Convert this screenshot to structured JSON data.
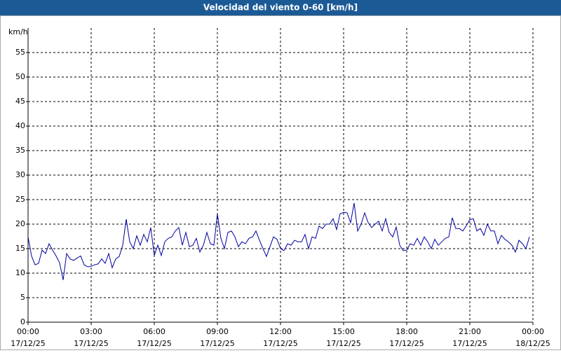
{
  "chart_data": {
    "type": "line",
    "title": "Velocidad del viento 0-60 [km/h]",
    "y_unit": "km/h",
    "xlim": [
      0,
      1440
    ],
    "ylim": [
      0,
      60
    ],
    "yticks": [
      0,
      5,
      10,
      15,
      20,
      25,
      30,
      35,
      40,
      45,
      50,
      55
    ],
    "xticks": [
      {
        "value": 0,
        "label": "00:00",
        "date": "17/12/25"
      },
      {
        "value": 180,
        "label": "03:00",
        "date": "17/12/25"
      },
      {
        "value": 360,
        "label": "06:00",
        "date": "17/12/25"
      },
      {
        "value": 540,
        "label": "09:00",
        "date": "17/12/25"
      },
      {
        "value": 720,
        "label": "12:00",
        "date": "17/12/25"
      },
      {
        "value": 900,
        "label": "15:00",
        "date": "17/12/25"
      },
      {
        "value": 1080,
        "label": "18:00",
        "date": "17/12/25"
      },
      {
        "value": 1260,
        "label": "21:00",
        "date": "17/12/25"
      },
      {
        "value": 1440,
        "label": "00:00",
        "date": "18/12/25"
      }
    ],
    "grid": true,
    "x": [
      0,
      10,
      20,
      30,
      40,
      50,
      60,
      70,
      80,
      90,
      100,
      110,
      120,
      130,
      140,
      150,
      160,
      170,
      180,
      190,
      200,
      210,
      220,
      230,
      240,
      250,
      260,
      270,
      280,
      290,
      300,
      310,
      320,
      330,
      340,
      350,
      360,
      370,
      380,
      390,
      400,
      410,
      420,
      430,
      440,
      450,
      460,
      470,
      480,
      490,
      500,
      510,
      520,
      530,
      540,
      550,
      560,
      570,
      580,
      590,
      600,
      610,
      620,
      630,
      640,
      650,
      660,
      670,
      680,
      690,
      700,
      710,
      720,
      730,
      740,
      750,
      760,
      770,
      780,
      790,
      800,
      810,
      820,
      830,
      840,
      850,
      860,
      870,
      880,
      890,
      900,
      910,
      920,
      930,
      940,
      950,
      960,
      970,
      980,
      990,
      1000,
      1010,
      1020,
      1030,
      1040,
      1050,
      1060,
      1070,
      1080,
      1090,
      1100,
      1110,
      1120,
      1130,
      1140,
      1150,
      1160,
      1170,
      1180,
      1190,
      1200,
      1210,
      1220,
      1230,
      1240,
      1250,
      1260,
      1270,
      1280,
      1290,
      1300,
      1310,
      1320,
      1330,
      1340,
      1350,
      1360,
      1370,
      1380,
      1390,
      1400,
      1410,
      1420,
      1430
    ],
    "series": [
      {
        "color": "#0000a0",
        "values": [
          17.4,
          13.5,
          11.7,
          12,
          14.7,
          14,
          16,
          14.7,
          13.5,
          12.1,
          8.6,
          14,
          12.9,
          12.6,
          13.1,
          13.5,
          11.7,
          11.3,
          11.4,
          11.7,
          11.9,
          12.9,
          12,
          14,
          11.1,
          12.9,
          13.4,
          15.7,
          21,
          16.4,
          15,
          17.6,
          15.7,
          17.9,
          16.4,
          19.3,
          13.6,
          15.7,
          13.6,
          16.4,
          17.1,
          17.4,
          18.6,
          19.3,
          15.7,
          18.3,
          15.4,
          15.7,
          17.1,
          14.3,
          15.7,
          18.3,
          16,
          15.7,
          22.1,
          17.1,
          15,
          18.3,
          18.6,
          17.4,
          15.4,
          16.4,
          16,
          17.1,
          17.4,
          18.6,
          16.7,
          15,
          13.4,
          15.4,
          17.4,
          16.9,
          15,
          14.6,
          16,
          15.7,
          16.7,
          16.4,
          16.4,
          17.9,
          15,
          17.4,
          17.1,
          19.6,
          19.1,
          20,
          20,
          21.1,
          18.9,
          22.1,
          22.4,
          22.3,
          20.3,
          24.3,
          18.6,
          20,
          22.3,
          20.3,
          19.3,
          20,
          20.6,
          18.6,
          21.1,
          18.3,
          17.4,
          19.4,
          15.7,
          14.6,
          14.7,
          16,
          15.7,
          17.1,
          15.7,
          17.4,
          16.4,
          15,
          16.9,
          15.7,
          16.4,
          17.1,
          17.4,
          21.3,
          19.1,
          19.1,
          18.6,
          19.7,
          20.9,
          21.1,
          18.6,
          19.1,
          17.7,
          20,
          18.6,
          18.6,
          16,
          17.7,
          16.9,
          16.4,
          15.7,
          14.3,
          16.7,
          16,
          15,
          17.4
        ]
      }
    ]
  }
}
